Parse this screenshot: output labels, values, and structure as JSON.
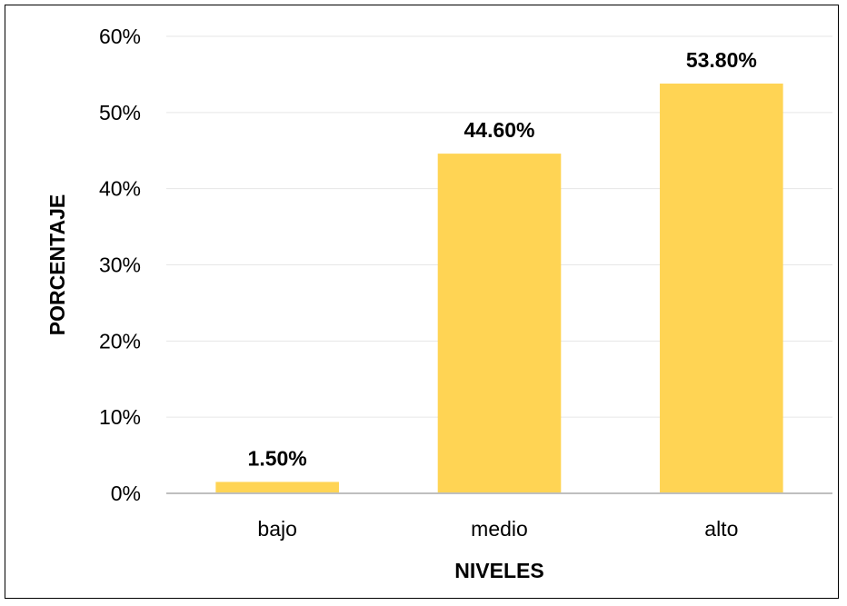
{
  "chart_data": {
    "type": "bar",
    "categories": [
      "bajo",
      "medio",
      "alto"
    ],
    "values": [
      1.5,
      44.6,
      53.8
    ],
    "data_labels": [
      "1.50%",
      "44.60%",
      "53.80%"
    ],
    "title": "",
    "xlabel": "NIVELES",
    "ylabel": "PORCENTAJE",
    "ylim": [
      0,
      60
    ],
    "yticks": [
      0,
      10,
      20,
      30,
      40,
      50,
      60
    ],
    "ytick_labels": [
      "0%",
      "10%",
      "20%",
      "30%",
      "40%",
      "50%",
      "60%"
    ],
    "grid": true,
    "legend": "none",
    "colors": {
      "bar": "#FFD454",
      "gridline": "#E6E6E6",
      "axis": "#BFBFBF"
    }
  }
}
